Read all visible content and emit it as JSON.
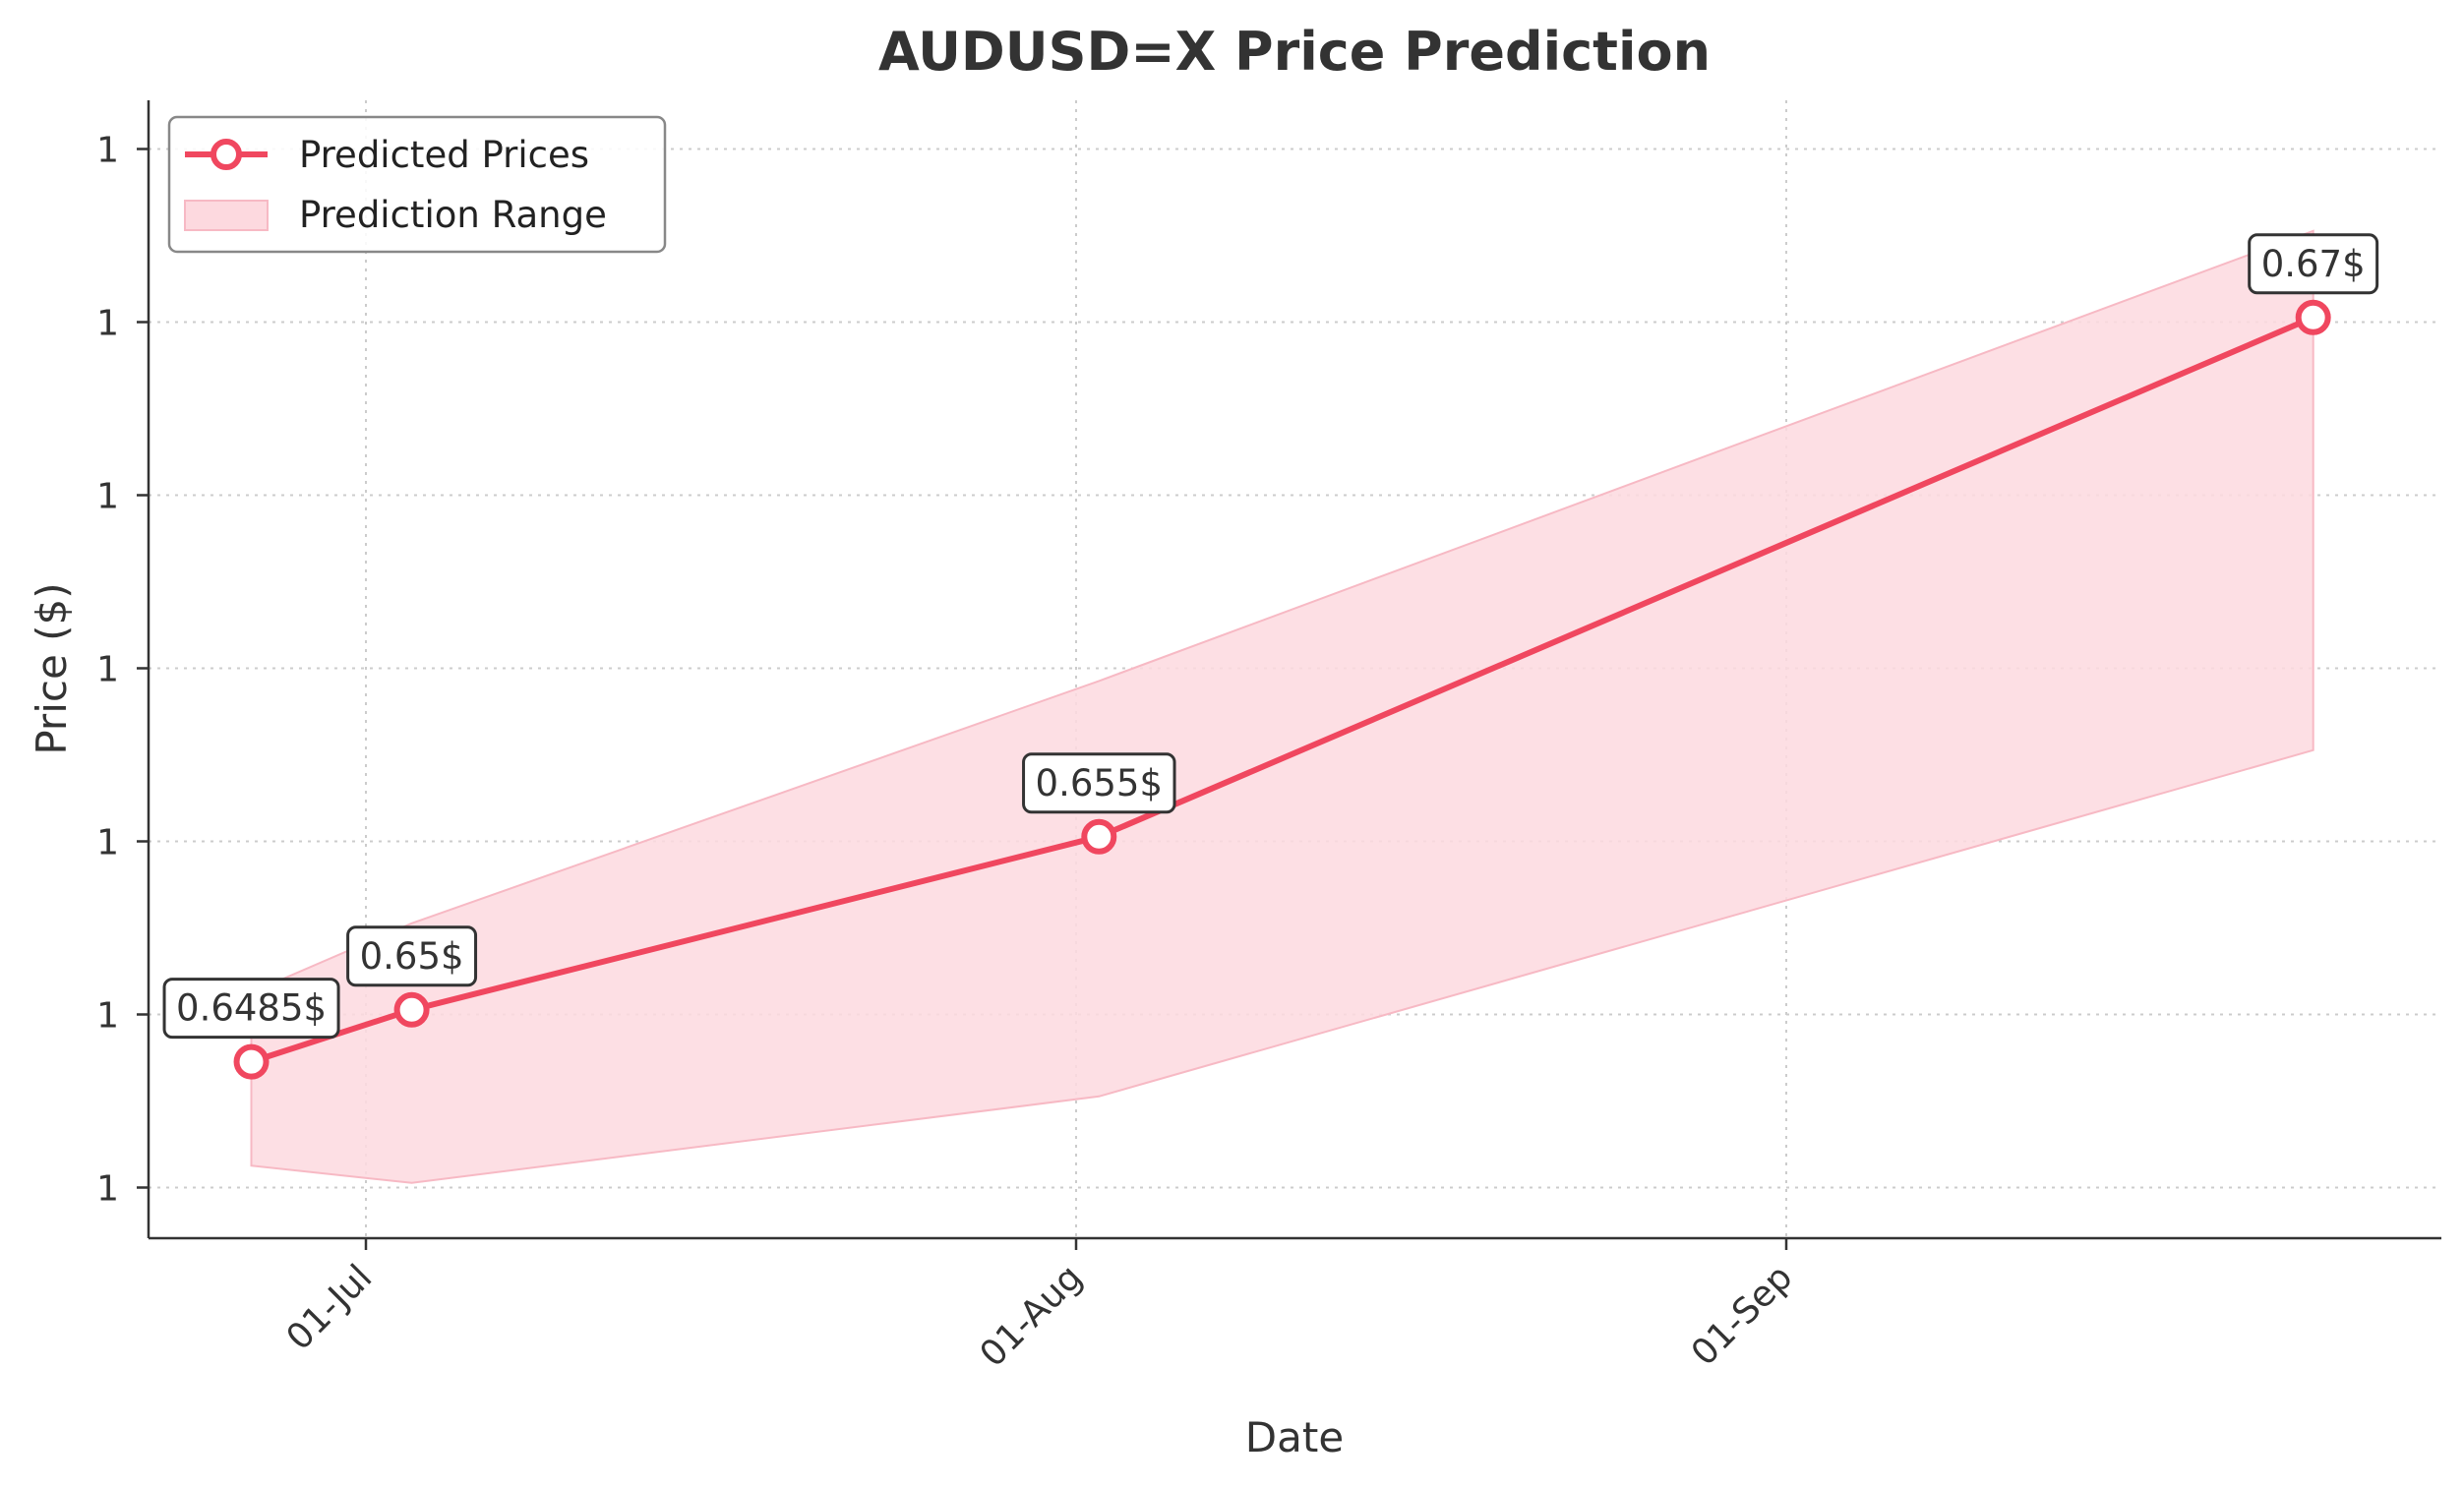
{
  "chart_data": {
    "type": "line",
    "title": "AUDUSD=X Price Prediction",
    "xlabel": "Date",
    "ylabel": "Price ($)",
    "x_ticks": [
      "01-Jul",
      "01-Aug",
      "01-Sep"
    ],
    "y_ticks": [
      "1",
      "1",
      "1",
      "1",
      "1",
      "1",
      "1"
    ],
    "grid": true,
    "legend_position": "top-left",
    "colors": {
      "line": "#f0475f",
      "range": "#fdd9df",
      "range_edge": "#f7b9c4"
    },
    "series": [
      {
        "name": "Predicted Prices",
        "type": "line",
        "x": [
          "2024-06-26",
          "2024-07-03",
          "2024-08-02",
          "2024-09-24"
        ],
        "y": [
          0.6485,
          0.65,
          0.655,
          0.67
        ],
        "labels": [
          "0.6485$",
          "0.65$",
          "0.655$",
          "0.67$"
        ]
      },
      {
        "name": "Prediction Range",
        "type": "band",
        "x": [
          "2024-06-26",
          "2024-07-03",
          "2024-08-02",
          "2024-09-24"
        ],
        "lower": [
          0.6455,
          0.645,
          0.6475,
          0.6575
        ],
        "upper": [
          0.6505,
          0.6525,
          0.6595,
          0.6725
        ]
      }
    ]
  }
}
